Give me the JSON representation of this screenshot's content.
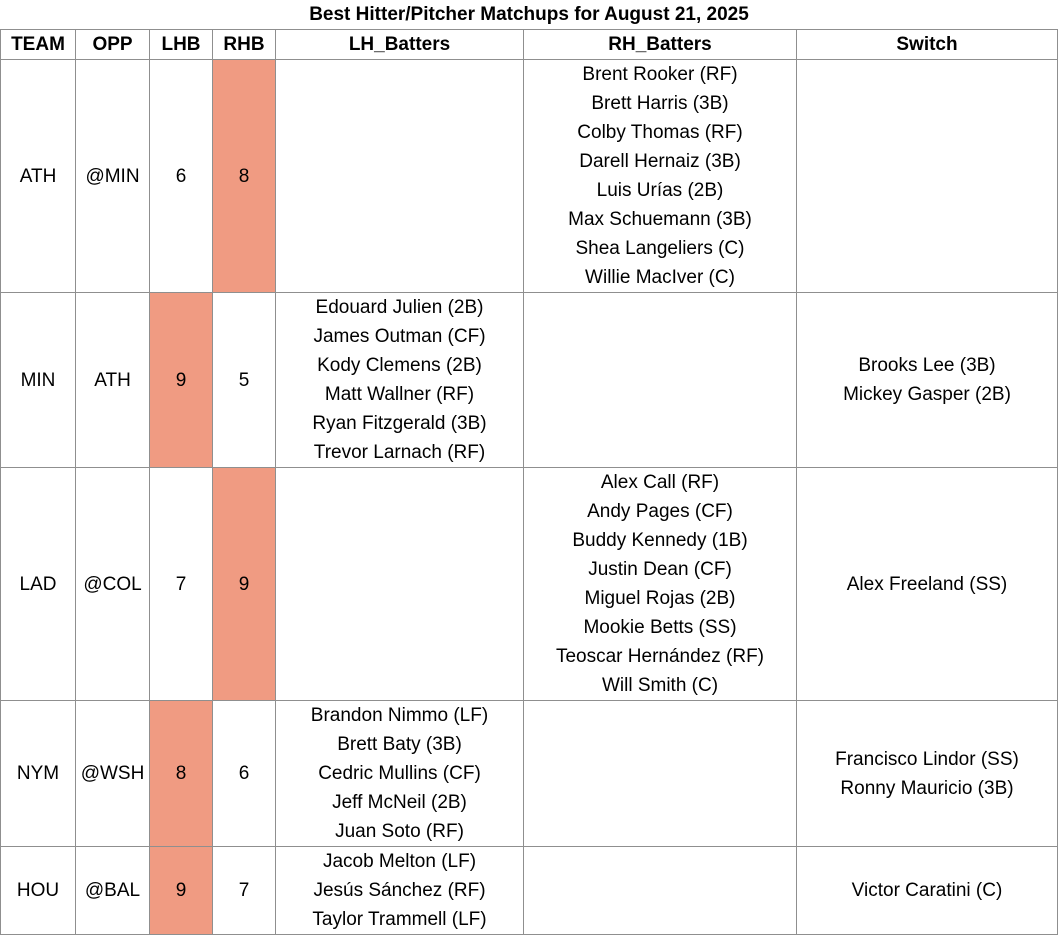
{
  "title": "Best Hitter/Pitcher Matchups for August 21, 2025",
  "columns": {
    "team": "TEAM",
    "opp": "OPP",
    "lhb": "LHB",
    "rhb": "RHB",
    "lh_batters": "LH_Batters",
    "rh_batters": "RH_Batters",
    "switch": "Switch"
  },
  "highlight_color": "#f09b82",
  "rows": [
    {
      "team": "ATH",
      "opp": "@MIN",
      "lhb": "6",
      "rhb": "8",
      "highlight": "rhb",
      "lh_batters": [],
      "rh_batters": [
        "Brent Rooker (RF)",
        "Brett Harris (3B)",
        "Colby Thomas (RF)",
        "Darell Hernaiz (3B)",
        "Luis Urías (2B)",
        "Max Schuemann (3B)",
        "Shea Langeliers (C)",
        "Willie MacIver (C)"
      ],
      "switch": []
    },
    {
      "team": "MIN",
      "opp": "ATH",
      "lhb": "9",
      "rhb": "5",
      "highlight": "lhb",
      "lh_batters": [
        "Edouard Julien (2B)",
        "James Outman (CF)",
        "Kody Clemens (2B)",
        "Matt Wallner (RF)",
        "Ryan Fitzgerald (3B)",
        "Trevor Larnach (RF)"
      ],
      "rh_batters": [],
      "switch": [
        "Brooks Lee (3B)",
        "Mickey Gasper (2B)"
      ]
    },
    {
      "team": "LAD",
      "opp": "@COL",
      "lhb": "7",
      "rhb": "9",
      "highlight": "rhb",
      "lh_batters": [],
      "rh_batters": [
        "Alex Call (RF)",
        "Andy Pages (CF)",
        "Buddy Kennedy (1B)",
        "Justin Dean (CF)",
        "Miguel Rojas (2B)",
        "Mookie Betts (SS)",
        "Teoscar Hernández (RF)",
        "Will Smith (C)"
      ],
      "switch": [
        "Alex Freeland (SS)"
      ]
    },
    {
      "team": "NYM",
      "opp": "@WSH",
      "lhb": "8",
      "rhb": "6",
      "highlight": "lhb",
      "lh_batters": [
        "Brandon Nimmo (LF)",
        "Brett Baty (3B)",
        "Cedric Mullins (CF)",
        "Jeff McNeil (2B)",
        "Juan Soto (RF)"
      ],
      "rh_batters": [],
      "switch": [
        "Francisco Lindor (SS)",
        "Ronny Mauricio (3B)"
      ]
    },
    {
      "team": "HOU",
      "opp": "@BAL",
      "lhb": "9",
      "rhb": "7",
      "highlight": "lhb",
      "lh_batters": [
        "Jacob Melton (LF)",
        "Jesús Sánchez (RF)",
        "Taylor Trammell (LF)"
      ],
      "rh_batters": [],
      "switch": [
        "Victor Caratini (C)"
      ]
    }
  ]
}
